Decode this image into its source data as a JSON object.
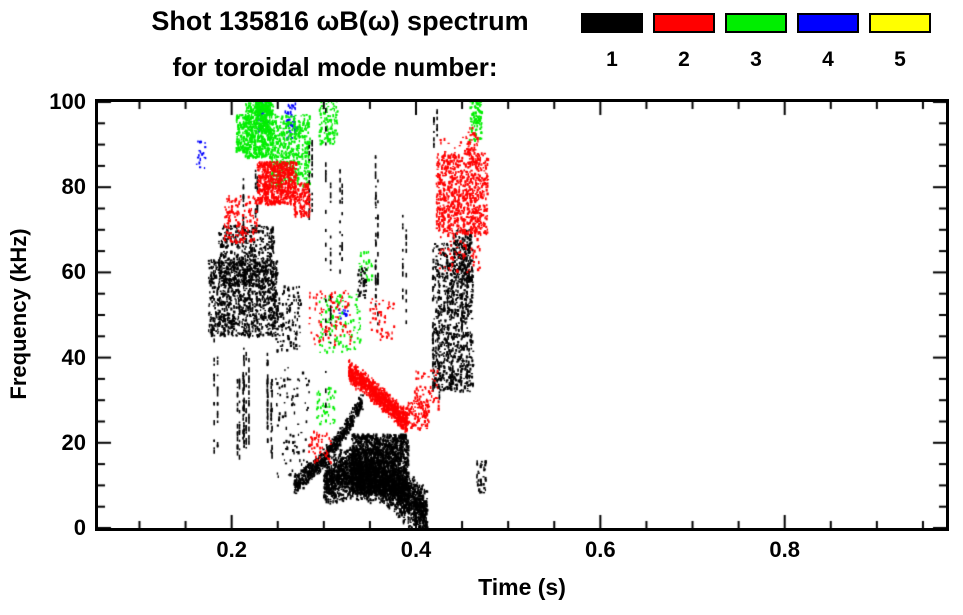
{
  "title": {
    "line1": "Shot 135816 ωB(ω) spectrum",
    "line2": "for toroidal mode number:"
  },
  "legend": {
    "modes": [
      {
        "label": "1",
        "color": "#000000"
      },
      {
        "label": "2",
        "color": "#ff0000"
      },
      {
        "label": "3",
        "color": "#00ee00"
      },
      {
        "label": "4",
        "color": "#0000ff"
      },
      {
        "label": "5",
        "color": "#ffff00"
      }
    ]
  },
  "chart_data": {
    "type": "scatter",
    "description": "Spectrogram-style scatter of magnetic fluctuation activity by toroidal mode number; t in seconds, f in kHz",
    "xlabel": "Time (s)",
    "ylabel": "Frequency (kHz)",
    "xlim": [
      0.055,
      0.975
    ],
    "ylim": [
      0,
      100
    ],
    "xticks": [
      {
        "v": 0.2,
        "label": "0.2"
      },
      {
        "v": 0.4,
        "label": "0.4"
      },
      {
        "v": 0.6,
        "label": "0.6"
      },
      {
        "v": 0.8,
        "label": "0.8"
      }
    ],
    "yticks": [
      {
        "v": 0,
        "label": "0"
      },
      {
        "v": 20,
        "label": "20"
      },
      {
        "v": 40,
        "label": "40"
      },
      {
        "v": 60,
        "label": "60"
      },
      {
        "v": 80,
        "label": "80"
      },
      {
        "v": 100,
        "label": "100"
      }
    ],
    "x_minor_step": 0.05,
    "y_minor_step": 5,
    "grid": false,
    "legend_position": "top-right",
    "draw_order": [
      3,
      2,
      0,
      1,
      4
    ],
    "series": [
      {
        "name": "n=1",
        "color": "#000000",
        "clusters": [
          {
            "kind": "blob",
            "t": [
              0.175,
              0.25
            ],
            "f": [
              45,
              63
            ],
            "n": 1000
          },
          {
            "kind": "blob",
            "t": [
              0.186,
              0.246
            ],
            "f": [
              57,
              71
            ],
            "n": 500
          },
          {
            "kind": "streaks",
            "t": [
              0.18,
              0.246
            ],
            "f": [
              12,
              46
            ],
            "count": 13,
            "dashes": 16
          },
          {
            "kind": "blob",
            "t": [
              0.247,
              0.275
            ],
            "f": [
              41,
              57
            ],
            "n": 120
          },
          {
            "kind": "blob",
            "t": [
              0.248,
              0.285
            ],
            "f": [
              12,
              38
            ],
            "n": 100
          },
          {
            "kind": "band",
            "pts": [
              [
                0.268,
                10
              ],
              [
                0.295,
                15
              ],
              [
                0.32,
                22
              ],
              [
                0.342,
                30
              ]
            ],
            "w": 2.5,
            "n": 600
          },
          {
            "kind": "band",
            "pts": [
              [
                0.3,
                11
              ],
              [
                0.33,
                13
              ],
              [
                0.36,
                12
              ],
              [
                0.39,
                7
              ],
              [
                0.412,
                3
              ]
            ],
            "w": 6.5,
            "n": 2600
          },
          {
            "kind": "blob",
            "t": [
              0.33,
              0.392
            ],
            "f": [
              8,
              22
            ],
            "n": 1600
          },
          {
            "kind": "streaks",
            "t": [
              0.283,
              0.288
            ],
            "f": [
              70,
              100
            ],
            "count": 2,
            "dashes": 14
          },
          {
            "kind": "streaks",
            "t": [
              0.302,
              0.308
            ],
            "f": [
              25,
              100
            ],
            "count": 2,
            "dashes": 20
          },
          {
            "kind": "streaks",
            "t": [
              0.317,
              0.323
            ],
            "f": [
              58,
              92
            ],
            "count": 2,
            "dashes": 12
          },
          {
            "kind": "streaks",
            "t": [
              0.355,
              0.363
            ],
            "f": [
              40,
              100
            ],
            "count": 3,
            "dashes": 16
          },
          {
            "kind": "streaks",
            "t": [
              0.385,
              0.39
            ],
            "f": [
              45,
              78
            ],
            "count": 2,
            "dashes": 10
          },
          {
            "kind": "blob",
            "t": [
              0.418,
              0.462
            ],
            "f": [
              32,
              67
            ],
            "n": 800
          },
          {
            "kind": "streaks",
            "t": [
              0.418,
              0.462
            ],
            "f": [
              30,
              68
            ],
            "count": 8,
            "dashes": 12
          },
          {
            "kind": "streaks",
            "t": [
              0.419,
              0.43
            ],
            "f": [
              88,
              100
            ],
            "count": 2,
            "dashes": 8
          },
          {
            "kind": "blob",
            "t": [
              0.44,
              0.46
            ],
            "f": [
              58,
              70
            ],
            "n": 150
          },
          {
            "kind": "blob",
            "t": [
              0.466,
              0.476
            ],
            "f": [
              8,
              16
            ],
            "n": 40
          },
          {
            "kind": "streaks",
            "t": [
              0.21,
              0.228
            ],
            "f": [
              69,
              89
            ],
            "count": 3,
            "dashes": 12
          },
          {
            "kind": "blob",
            "t": [
              0.337,
              0.346
            ],
            "f": [
              54,
              61
            ],
            "n": 40
          }
        ]
      },
      {
        "name": "n=2",
        "color": "#ff0000",
        "clusters": [
          {
            "kind": "blob",
            "t": [
              0.192,
              0.228
            ],
            "f": [
              67,
              78
            ],
            "n": 160
          },
          {
            "kind": "blob",
            "t": [
              0.228,
              0.27
            ],
            "f": [
              76,
              86
            ],
            "n": 650
          },
          {
            "kind": "blob",
            "t": [
              0.268,
              0.285
            ],
            "f": [
              73,
              81
            ],
            "n": 120
          },
          {
            "kind": "band",
            "pts": [
              [
                0.327,
                37
              ],
              [
                0.35,
                33
              ],
              [
                0.37,
                29
              ],
              [
                0.39,
                25
              ]
            ],
            "w": 3,
            "n": 900
          },
          {
            "kind": "blob",
            "t": [
              0.388,
              0.414
            ],
            "f": [
              23,
              30
            ],
            "n": 120
          },
          {
            "kind": "blob",
            "t": [
              0.284,
              0.33
            ],
            "f": [
              43,
              56
            ],
            "n": 90
          },
          {
            "kind": "blob",
            "t": [
              0.35,
              0.378
            ],
            "f": [
              44,
              54
            ],
            "n": 50
          },
          {
            "kind": "blob",
            "t": [
              0.422,
              0.478
            ],
            "f": [
              69,
              88
            ],
            "n": 700
          },
          {
            "kind": "blob",
            "t": [
              0.425,
              0.47
            ],
            "f": [
              60,
              92
            ],
            "n": 200
          },
          {
            "kind": "blob",
            "t": [
              0.284,
              0.308
            ],
            "f": [
              15,
              23
            ],
            "n": 50
          },
          {
            "kind": "blob",
            "t": [
              0.398,
              0.425
            ],
            "f": [
              28,
              37
            ],
            "n": 60
          },
          {
            "kind": "blob",
            "t": [
              0.455,
              0.465
            ],
            "f": [
              88,
              94
            ],
            "n": 30
          }
        ]
      },
      {
        "name": "n=3",
        "color": "#00ee00",
        "clusters": [
          {
            "kind": "blob",
            "t": [
              0.215,
              0.245
            ],
            "f": [
              87,
              100
            ],
            "n": 500
          },
          {
            "kind": "blob",
            "t": [
              0.226,
              0.243
            ],
            "f": [
              93,
              101
            ],
            "n": 200
          },
          {
            "kind": "blob",
            "t": [
              0.243,
              0.285
            ],
            "f": [
              80,
              97
            ],
            "n": 450
          },
          {
            "kind": "blob",
            "t": [
              0.205,
              0.217
            ],
            "f": [
              88,
              97
            ],
            "n": 120
          },
          {
            "kind": "blob",
            "t": [
              0.295,
              0.315
            ],
            "f": [
              90,
              101
            ],
            "n": 120
          },
          {
            "kind": "blob",
            "t": [
              0.295,
              0.34
            ],
            "f": [
              41,
              55
            ],
            "n": 110
          },
          {
            "kind": "blob",
            "t": [
              0.289,
              0.312
            ],
            "f": [
              24,
              33
            ],
            "n": 45
          },
          {
            "kind": "blob",
            "t": [
              0.458,
              0.472
            ],
            "f": [
              91,
              101
            ],
            "n": 90
          },
          {
            "kind": "blob",
            "t": [
              0.338,
              0.352
            ],
            "f": [
              58,
              65
            ],
            "n": 30
          }
        ]
      },
      {
        "name": "n=4",
        "color": "#0000ff",
        "clusters": [
          {
            "kind": "blob",
            "t": [
              0.228,
              0.24
            ],
            "f": [
              93,
              100
            ],
            "n": 35
          },
          {
            "kind": "blob",
            "t": [
              0.258,
              0.272
            ],
            "f": [
              91,
              100
            ],
            "n": 45
          },
          {
            "kind": "blob",
            "t": [
              0.162,
              0.172
            ],
            "f": [
              84,
              91
            ],
            "n": 18
          },
          {
            "kind": "blob",
            "t": [
              0.316,
              0.326
            ],
            "f": [
              48,
              53
            ],
            "n": 14
          }
        ]
      },
      {
        "name": "n=5",
        "color": "#ffff00",
        "clusters": []
      }
    ]
  }
}
